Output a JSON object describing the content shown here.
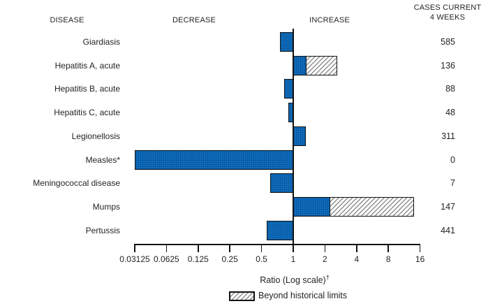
{
  "header": {
    "disease": "DISEASE",
    "decrease": "DECREASE",
    "increase": "INCREASE",
    "cases_line1": "CASES CURRENT",
    "cases_line2": "4 WEEKS"
  },
  "chart_data": {
    "type": "bar",
    "orientation": "horizontal",
    "scale": "log2",
    "xlabel": "Ratio (Log scale)",
    "xlabel_superscript": "†",
    "xlim": [
      0.03125,
      16
    ],
    "baseline": 1,
    "x_ticks": [
      0.03125,
      0.0625,
      0.125,
      0.25,
      0.5,
      1,
      2,
      4,
      8,
      16
    ],
    "x_tick_labels": [
      "0.03125",
      "0.0625",
      "0.125",
      "0.25",
      "0.5",
      "1",
      "2",
      "4",
      "8",
      "16"
    ],
    "legend": {
      "label": "Beyond historical limits",
      "swatch": "hatched"
    },
    "rows": [
      {
        "disease": "Giardiasis",
        "ratio": 0.75,
        "beyond_ratio": null,
        "cases": 585
      },
      {
        "disease": "Hepatitis A, acute",
        "ratio": 1.34,
        "beyond_ratio": 2.6,
        "cases": 136
      },
      {
        "disease": "Hepatitis B, acute",
        "ratio": 0.82,
        "beyond_ratio": null,
        "cases": 88
      },
      {
        "disease": "Hepatitis C, acute",
        "ratio": 0.9,
        "beyond_ratio": null,
        "cases": 48
      },
      {
        "disease": "Legionellosis",
        "ratio": 1.32,
        "beyond_ratio": null,
        "cases": 311
      },
      {
        "disease": "Measles*",
        "ratio": 0.03125,
        "beyond_ratio": null,
        "cases": 0
      },
      {
        "disease": "Meningococcal disease",
        "ratio": 0.6,
        "beyond_ratio": null,
        "cases": 7
      },
      {
        "disease": "Mumps",
        "ratio": 2.26,
        "beyond_ratio": 14,
        "cases": 147
      },
      {
        "disease": "Pertussis",
        "ratio": 0.56,
        "beyond_ratio": null,
        "cases": 441
      }
    ],
    "colors": {
      "bar_fill": "#0f72c4",
      "bar_border": "#111111",
      "hatch_line": "#8f8f8f",
      "text": "#231f20"
    }
  }
}
